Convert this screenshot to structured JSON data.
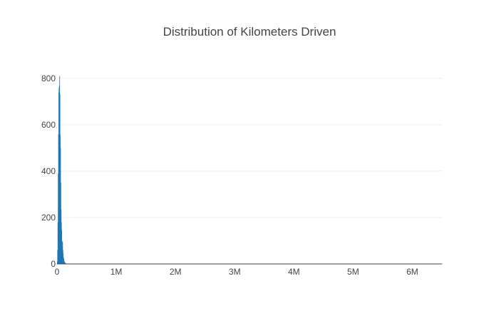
{
  "chart_data": {
    "type": "bar",
    "title": "Distribution of Kilometers Driven",
    "xlabel": "",
    "ylabel": "",
    "x_range": [
      0,
      6500000
    ],
    "y_range": [
      0,
      830
    ],
    "x_ticks": [
      {
        "value": 0,
        "label": "0"
      },
      {
        "value": 1000000,
        "label": "1M"
      },
      {
        "value": 2000000,
        "label": "2M"
      },
      {
        "value": 3000000,
        "label": "3M"
      },
      {
        "value": 4000000,
        "label": "4M"
      },
      {
        "value": 5000000,
        "label": "5M"
      },
      {
        "value": 6000000,
        "label": "6M"
      }
    ],
    "y_ticks": [
      {
        "value": 0,
        "label": "0"
      },
      {
        "value": 200,
        "label": "200"
      },
      {
        "value": 400,
        "label": "400"
      },
      {
        "value": 600,
        "label": "600"
      },
      {
        "value": 800,
        "label": "800"
      }
    ],
    "grid": true,
    "bin_width": 5000,
    "bins": [
      {
        "x0": 0,
        "count": 10
      },
      {
        "x0": 5000,
        "count": 60
      },
      {
        "x0": 10000,
        "count": 180
      },
      {
        "x0": 15000,
        "count": 390
      },
      {
        "x0": 20000,
        "count": 560
      },
      {
        "x0": 25000,
        "count": 740
      },
      {
        "x0": 30000,
        "count": 760
      },
      {
        "x0": 35000,
        "count": 770
      },
      {
        "x0": 40000,
        "count": 810
      },
      {
        "x0": 45000,
        "count": 730
      },
      {
        "x0": 50000,
        "count": 555
      },
      {
        "x0": 55000,
        "count": 500
      },
      {
        "x0": 60000,
        "count": 350
      },
      {
        "x0": 65000,
        "count": 235
      },
      {
        "x0": 70000,
        "count": 180
      },
      {
        "x0": 75000,
        "count": 145
      },
      {
        "x0": 80000,
        "count": 100
      },
      {
        "x0": 85000,
        "count": 70
      },
      {
        "x0": 90000,
        "count": 95
      },
      {
        "x0": 95000,
        "count": 60
      },
      {
        "x0": 100000,
        "count": 45
      },
      {
        "x0": 105000,
        "count": 30
      },
      {
        "x0": 110000,
        "count": 22
      },
      {
        "x0": 115000,
        "count": 15
      },
      {
        "x0": 120000,
        "count": 10
      },
      {
        "x0": 125000,
        "count": 8
      },
      {
        "x0": 130000,
        "count": 6
      },
      {
        "x0": 135000,
        "count": 4
      },
      {
        "x0": 140000,
        "count": 3
      },
      {
        "x0": 145000,
        "count": 2
      },
      {
        "x0": 150000,
        "count": 2
      },
      {
        "x0": 160000,
        "count": 1
      },
      {
        "x0": 175000,
        "count": 1
      },
      {
        "x0": 200000,
        "count": 1
      },
      {
        "x0": 500000,
        "count": 1
      },
      {
        "x0": 6500000,
        "count": 1
      }
    ],
    "colors": {
      "bar": "#1f77b4",
      "grid": "#eeeeee",
      "axis_line": "#444444",
      "text": "#444444"
    }
  }
}
